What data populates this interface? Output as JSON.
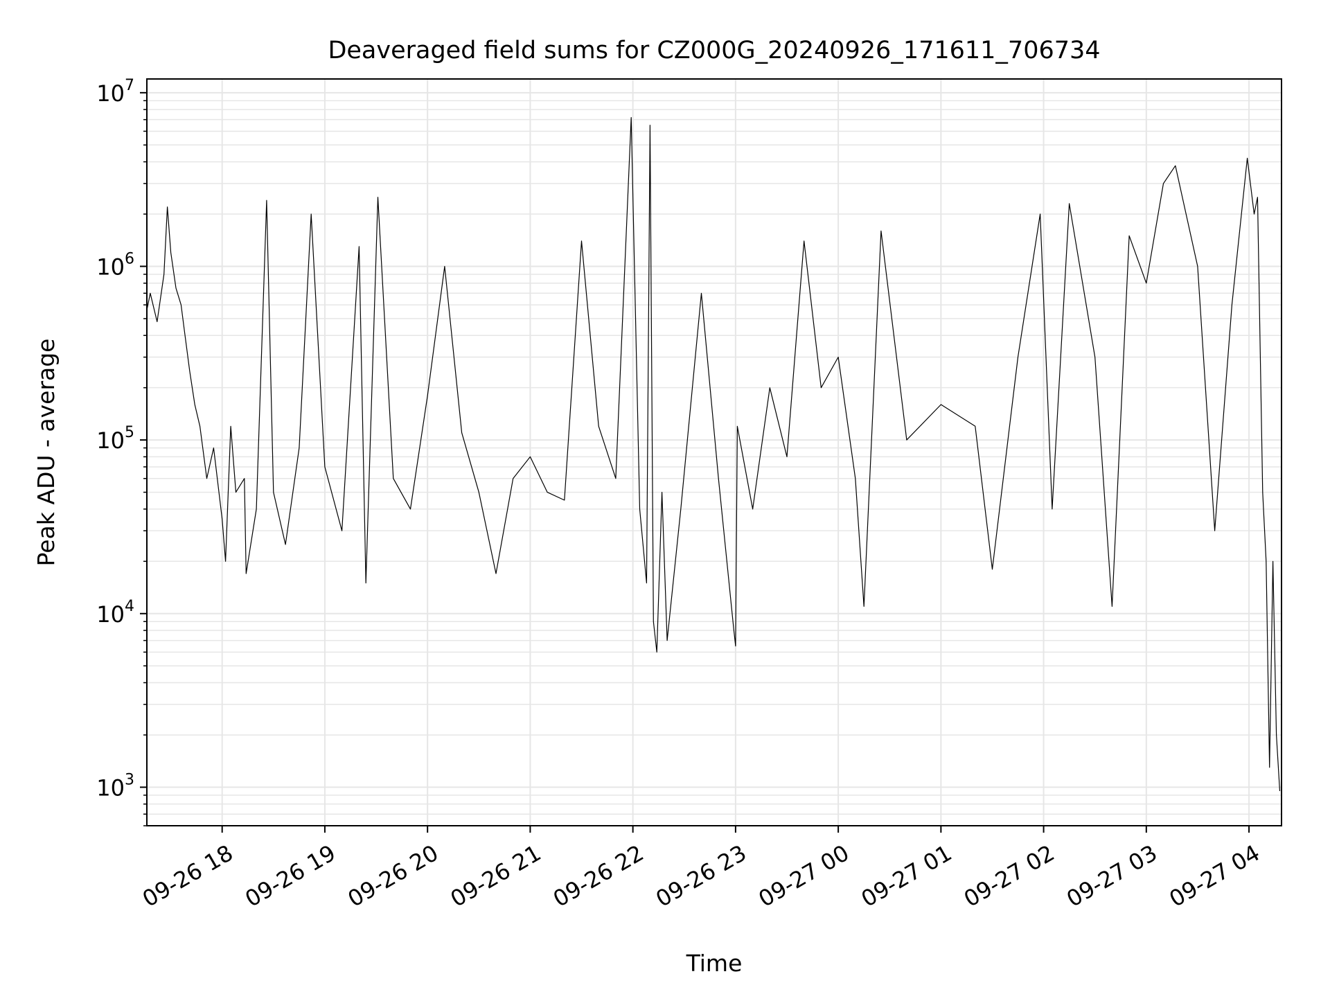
{
  "chart_data": {
    "type": "line",
    "title": "Deaveraged field sums for CZ000G_20240926_171611_706734",
    "xlabel": "Time",
    "ylabel": "Peak ADU - average",
    "y_scale": "log",
    "ylim": [
      600,
      12000000
    ],
    "xlim": [
      "2024-09-26 17:16",
      "2024-09-27 04:19"
    ],
    "grid": true,
    "grid_color": "#e6e6e6",
    "line_color": "#000000",
    "x_ticks": [
      {
        "value": "2024-09-26 18:00",
        "label": "09-26 18"
      },
      {
        "value": "2024-09-26 19:00",
        "label": "09-26 19"
      },
      {
        "value": "2024-09-26 20:00",
        "label": "09-26 20"
      },
      {
        "value": "2024-09-26 21:00",
        "label": "09-26 21"
      },
      {
        "value": "2024-09-26 22:00",
        "label": "09-26 22"
      },
      {
        "value": "2024-09-26 23:00",
        "label": "09-26 23"
      },
      {
        "value": "2024-09-27 00:00",
        "label": "09-27 00"
      },
      {
        "value": "2024-09-27 01:00",
        "label": "09-27 01"
      },
      {
        "value": "2024-09-27 02:00",
        "label": "09-27 02"
      },
      {
        "value": "2024-09-27 03:00",
        "label": "09-27 03"
      },
      {
        "value": "2024-09-27 04:00",
        "label": "09-27 04"
      }
    ],
    "y_ticks": [
      {
        "value": 1000,
        "base": "10",
        "exp": "3"
      },
      {
        "value": 10000,
        "base": "10",
        "exp": "4"
      },
      {
        "value": 100000,
        "base": "10",
        "exp": "5"
      },
      {
        "value": 1000000,
        "base": "10",
        "exp": "6"
      },
      {
        "value": 10000000,
        "base": "10",
        "exp": "7"
      }
    ],
    "series": [
      {
        "points": [
          [
            "2024-09-26 17:16",
            560000
          ],
          [
            "2024-09-26 17:18",
            700000
          ],
          [
            "2024-09-26 17:22",
            480000
          ],
          [
            "2024-09-26 17:26",
            900000
          ],
          [
            "2024-09-26 17:28",
            2200000
          ],
          [
            "2024-09-26 17:30",
            1200000
          ],
          [
            "2024-09-26 17:33",
            750000
          ],
          [
            "2024-09-26 17:36",
            600000
          ],
          [
            "2024-09-26 17:38",
            420000
          ],
          [
            "2024-09-26 17:41",
            250000
          ],
          [
            "2024-09-26 17:44",
            160000
          ],
          [
            "2024-09-26 17:47",
            120000
          ],
          [
            "2024-09-26 17:51",
            60000
          ],
          [
            "2024-09-26 17:55",
            90000
          ],
          [
            "2024-09-26 18:00",
            35000
          ],
          [
            "2024-09-26 18:02",
            20000
          ],
          [
            "2024-09-26 18:05",
            120000
          ],
          [
            "2024-09-26 18:08",
            50000
          ],
          [
            "2024-09-26 18:13",
            60000
          ],
          [
            "2024-09-26 18:14",
            17000
          ],
          [
            "2024-09-26 18:20",
            40000
          ],
          [
            "2024-09-26 18:26",
            2400000
          ],
          [
            "2024-09-26 18:30",
            50000
          ],
          [
            "2024-09-26 18:37",
            25000
          ],
          [
            "2024-09-26 18:45",
            90000
          ],
          [
            "2024-09-26 18:52",
            2000000
          ],
          [
            "2024-09-26 19:00",
            70000
          ],
          [
            "2024-09-26 19:10",
            30000
          ],
          [
            "2024-09-26 19:20",
            1300000
          ],
          [
            "2024-09-26 19:24",
            15000
          ],
          [
            "2024-09-26 19:31",
            2500000
          ],
          [
            "2024-09-26 19:40",
            60000
          ],
          [
            "2024-09-26 19:50",
            40000
          ],
          [
            "2024-09-26 20:00",
            180000
          ],
          [
            "2024-09-26 20:10",
            1000000
          ],
          [
            "2024-09-26 20:20",
            110000
          ],
          [
            "2024-09-26 20:30",
            50000
          ],
          [
            "2024-09-26 20:40",
            17000
          ],
          [
            "2024-09-26 20:50",
            60000
          ],
          [
            "2024-09-26 21:00",
            80000
          ],
          [
            "2024-09-26 21:10",
            50000
          ],
          [
            "2024-09-26 21:20",
            45000
          ],
          [
            "2024-09-26 21:30",
            1400000
          ],
          [
            "2024-09-26 21:40",
            120000
          ],
          [
            "2024-09-26 21:50",
            60000
          ],
          [
            "2024-09-26 21:59",
            7200000
          ],
          [
            "2024-09-26 22:04",
            40000
          ],
          [
            "2024-09-26 22:08",
            15000
          ],
          [
            "2024-09-26 22:10",
            6500000
          ],
          [
            "2024-09-26 22:12",
            9000
          ],
          [
            "2024-09-26 22:14",
            6000
          ],
          [
            "2024-09-26 22:17",
            50000
          ],
          [
            "2024-09-26 22:20",
            7000
          ],
          [
            "2024-09-26 22:28",
            40000
          ],
          [
            "2024-09-26 22:40",
            700000
          ],
          [
            "2024-09-26 22:50",
            60000
          ],
          [
            "2024-09-26 22:59",
            8000
          ],
          [
            "2024-09-26 23:00",
            6500
          ],
          [
            "2024-09-26 23:01",
            120000
          ],
          [
            "2024-09-26 23:10",
            40000
          ],
          [
            "2024-09-26 23:20",
            200000
          ],
          [
            "2024-09-26 23:30",
            80000
          ],
          [
            "2024-09-26 23:40",
            1400000
          ],
          [
            "2024-09-26 23:50",
            200000
          ],
          [
            "2024-09-27 00:00",
            300000
          ],
          [
            "2024-09-27 00:10",
            60000
          ],
          [
            "2024-09-27 00:15",
            11000
          ],
          [
            "2024-09-27 00:25",
            1600000
          ],
          [
            "2024-09-27 00:40",
            100000
          ],
          [
            "2024-09-27 01:00",
            160000
          ],
          [
            "2024-09-27 01:20",
            120000
          ],
          [
            "2024-09-27 01:30",
            18000
          ],
          [
            "2024-09-27 01:45",
            300000
          ],
          [
            "2024-09-27 01:58",
            2000000
          ],
          [
            "2024-09-27 02:05",
            40000
          ],
          [
            "2024-09-27 02:15",
            2300000
          ],
          [
            "2024-09-27 02:30",
            300000
          ],
          [
            "2024-09-27 02:40",
            11000
          ],
          [
            "2024-09-27 02:50",
            1500000
          ],
          [
            "2024-09-27 03:00",
            800000
          ],
          [
            "2024-09-27 03:10",
            3000000
          ],
          [
            "2024-09-27 03:17",
            3800000
          ],
          [
            "2024-09-27 03:30",
            1000000
          ],
          [
            "2024-09-27 03:40",
            30000
          ],
          [
            "2024-09-27 03:50",
            600000
          ],
          [
            "2024-09-27 03:59",
            4200000
          ],
          [
            "2024-09-27 04:03",
            2000000
          ],
          [
            "2024-09-27 04:05",
            2500000
          ],
          [
            "2024-09-27 04:08",
            50000
          ],
          [
            "2024-09-27 04:10",
            20000
          ],
          [
            "2024-09-27 04:12",
            1300
          ],
          [
            "2024-09-27 04:14",
            20000
          ],
          [
            "2024-09-27 04:16",
            2000
          ],
          [
            "2024-09-27 04:18",
            950
          ]
        ]
      }
    ]
  }
}
